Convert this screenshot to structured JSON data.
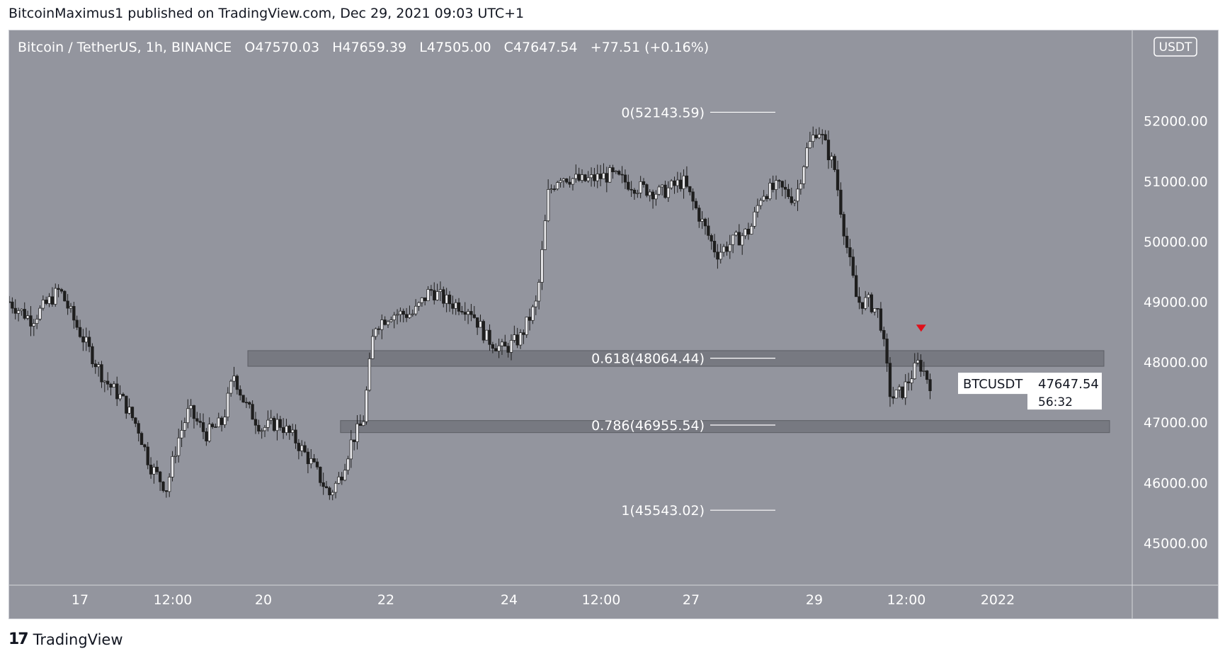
{
  "header": {
    "publisher_line": "BitcoinMaximus1 published on TradingView.com, Dec 29, 2021 09:03 UTC+1"
  },
  "legend": {
    "symbol": "Bitcoin / TetherUS, 1h, BINANCE",
    "o_key": "O",
    "o_val": "47570.03",
    "h_key": "H",
    "h_val": "47659.39",
    "l_key": "L",
    "l_val": "47505.00",
    "c_key": "C",
    "c_val": "47647.54",
    "change": "+77.51 (+0.16%)"
  },
  "footer": {
    "logo_text": "TradingView",
    "logo_icon": "tradingview-logo-icon"
  },
  "colors": {
    "background": "#93959e",
    "candle": "#1e1e1e",
    "grid_text": "#ffffff",
    "zone_fill": "#6e7077",
    "fib_line": "#ffffff",
    "arrow": "#e0101a"
  },
  "chart_data": {
    "type": "candlestick",
    "title": "Bitcoin / TetherUS, 1h, BINANCE",
    "currency_badge": "USDT",
    "ylim": [
      44300,
      53500
    ],
    "y_ticks": [
      {
        "value": 45000,
        "label": "45000.00"
      },
      {
        "value": 46000,
        "label": "46000.00"
      },
      {
        "value": 47000,
        "label": "47000.00"
      },
      {
        "value": 48000,
        "label": "48000.00"
      },
      {
        "value": 49000,
        "label": "49000.00"
      },
      {
        "value": 50000,
        "label": "50000.00"
      },
      {
        "value": 51000,
        "label": "51000.00"
      },
      {
        "value": 52000,
        "label": "52000.00"
      }
    ],
    "x_ticks": [
      "17",
      "12:00",
      "20",
      "22",
      "24",
      "12:00",
      "27",
      "29",
      "12:00",
      "2022"
    ],
    "price_path": [
      [
        0.0,
        49000
      ],
      [
        0.02,
        48700
      ],
      [
        0.045,
        49200
      ],
      [
        0.06,
        48600
      ],
      [
        0.085,
        47700
      ],
      [
        0.1,
        47400
      ],
      [
        0.115,
        46900
      ],
      [
        0.125,
        46300
      ],
      [
        0.14,
        45900
      ],
      [
        0.15,
        46700
      ],
      [
        0.16,
        47200
      ],
      [
        0.175,
        46800
      ],
      [
        0.19,
        47000
      ],
      [
        0.2,
        47800
      ],
      [
        0.21,
        47300
      ],
      [
        0.225,
        46900
      ],
      [
        0.24,
        47000
      ],
      [
        0.255,
        46700
      ],
      [
        0.27,
        46300
      ],
      [
        0.285,
        45800
      ],
      [
        0.295,
        46100
      ],
      [
        0.305,
        46700
      ],
      [
        0.315,
        47000
      ],
      [
        0.325,
        48600
      ],
      [
        0.34,
        48800
      ],
      [
        0.36,
        48800
      ],
      [
        0.375,
        49200
      ],
      [
        0.39,
        49000
      ],
      [
        0.41,
        48900
      ],
      [
        0.425,
        48400
      ],
      [
        0.44,
        48200
      ],
      [
        0.455,
        48400
      ],
      [
        0.47,
        49000
      ],
      [
        0.48,
        50800
      ],
      [
        0.49,
        51100
      ],
      [
        0.51,
        51000
      ],
      [
        0.535,
        51100
      ],
      [
        0.56,
        50900
      ],
      [
        0.58,
        50800
      ],
      [
        0.6,
        51000
      ],
      [
        0.615,
        50400
      ],
      [
        0.63,
        49800
      ],
      [
        0.645,
        50000
      ],
      [
        0.66,
        50200
      ],
      [
        0.67,
        50800
      ],
      [
        0.685,
        50900
      ],
      [
        0.7,
        50700
      ],
      [
        0.71,
        51500
      ],
      [
        0.72,
        51900
      ],
      [
        0.735,
        51200
      ],
      [
        0.745,
        50000
      ],
      [
        0.755,
        49000
      ],
      [
        0.765,
        49000
      ],
      [
        0.775,
        48800
      ],
      [
        0.785,
        47400
      ],
      [
        0.795,
        47500
      ],
      [
        0.81,
        48000
      ],
      [
        0.82,
        47650
      ]
    ],
    "notable_values": {
      "high": 52143.59,
      "low": 45543.02,
      "fib_618": 48064.44,
      "fib_786": 46955.54
    },
    "fib_levels": [
      {
        "label": "0(52143.59)",
        "value": 52143.59
      },
      {
        "label": "0.618(48064.44)",
        "value": 48064.44
      },
      {
        "label": "0.786(46955.54)",
        "value": 46955.54
      },
      {
        "label": "1(45543.02)",
        "value": 45543.02
      }
    ],
    "zones": [
      {
        "low": 47930,
        "high": 48190,
        "from": 0.2125
      },
      {
        "low": 46830,
        "high": 47030,
        "from": 0.295
      }
    ],
    "arrow_marker": {
      "value": 48550,
      "position": 0.812
    },
    "last_price": {
      "symbol": "BTCUSDT",
      "price": "47647.54",
      "value": 47647.54,
      "countdown": "56:32"
    }
  }
}
